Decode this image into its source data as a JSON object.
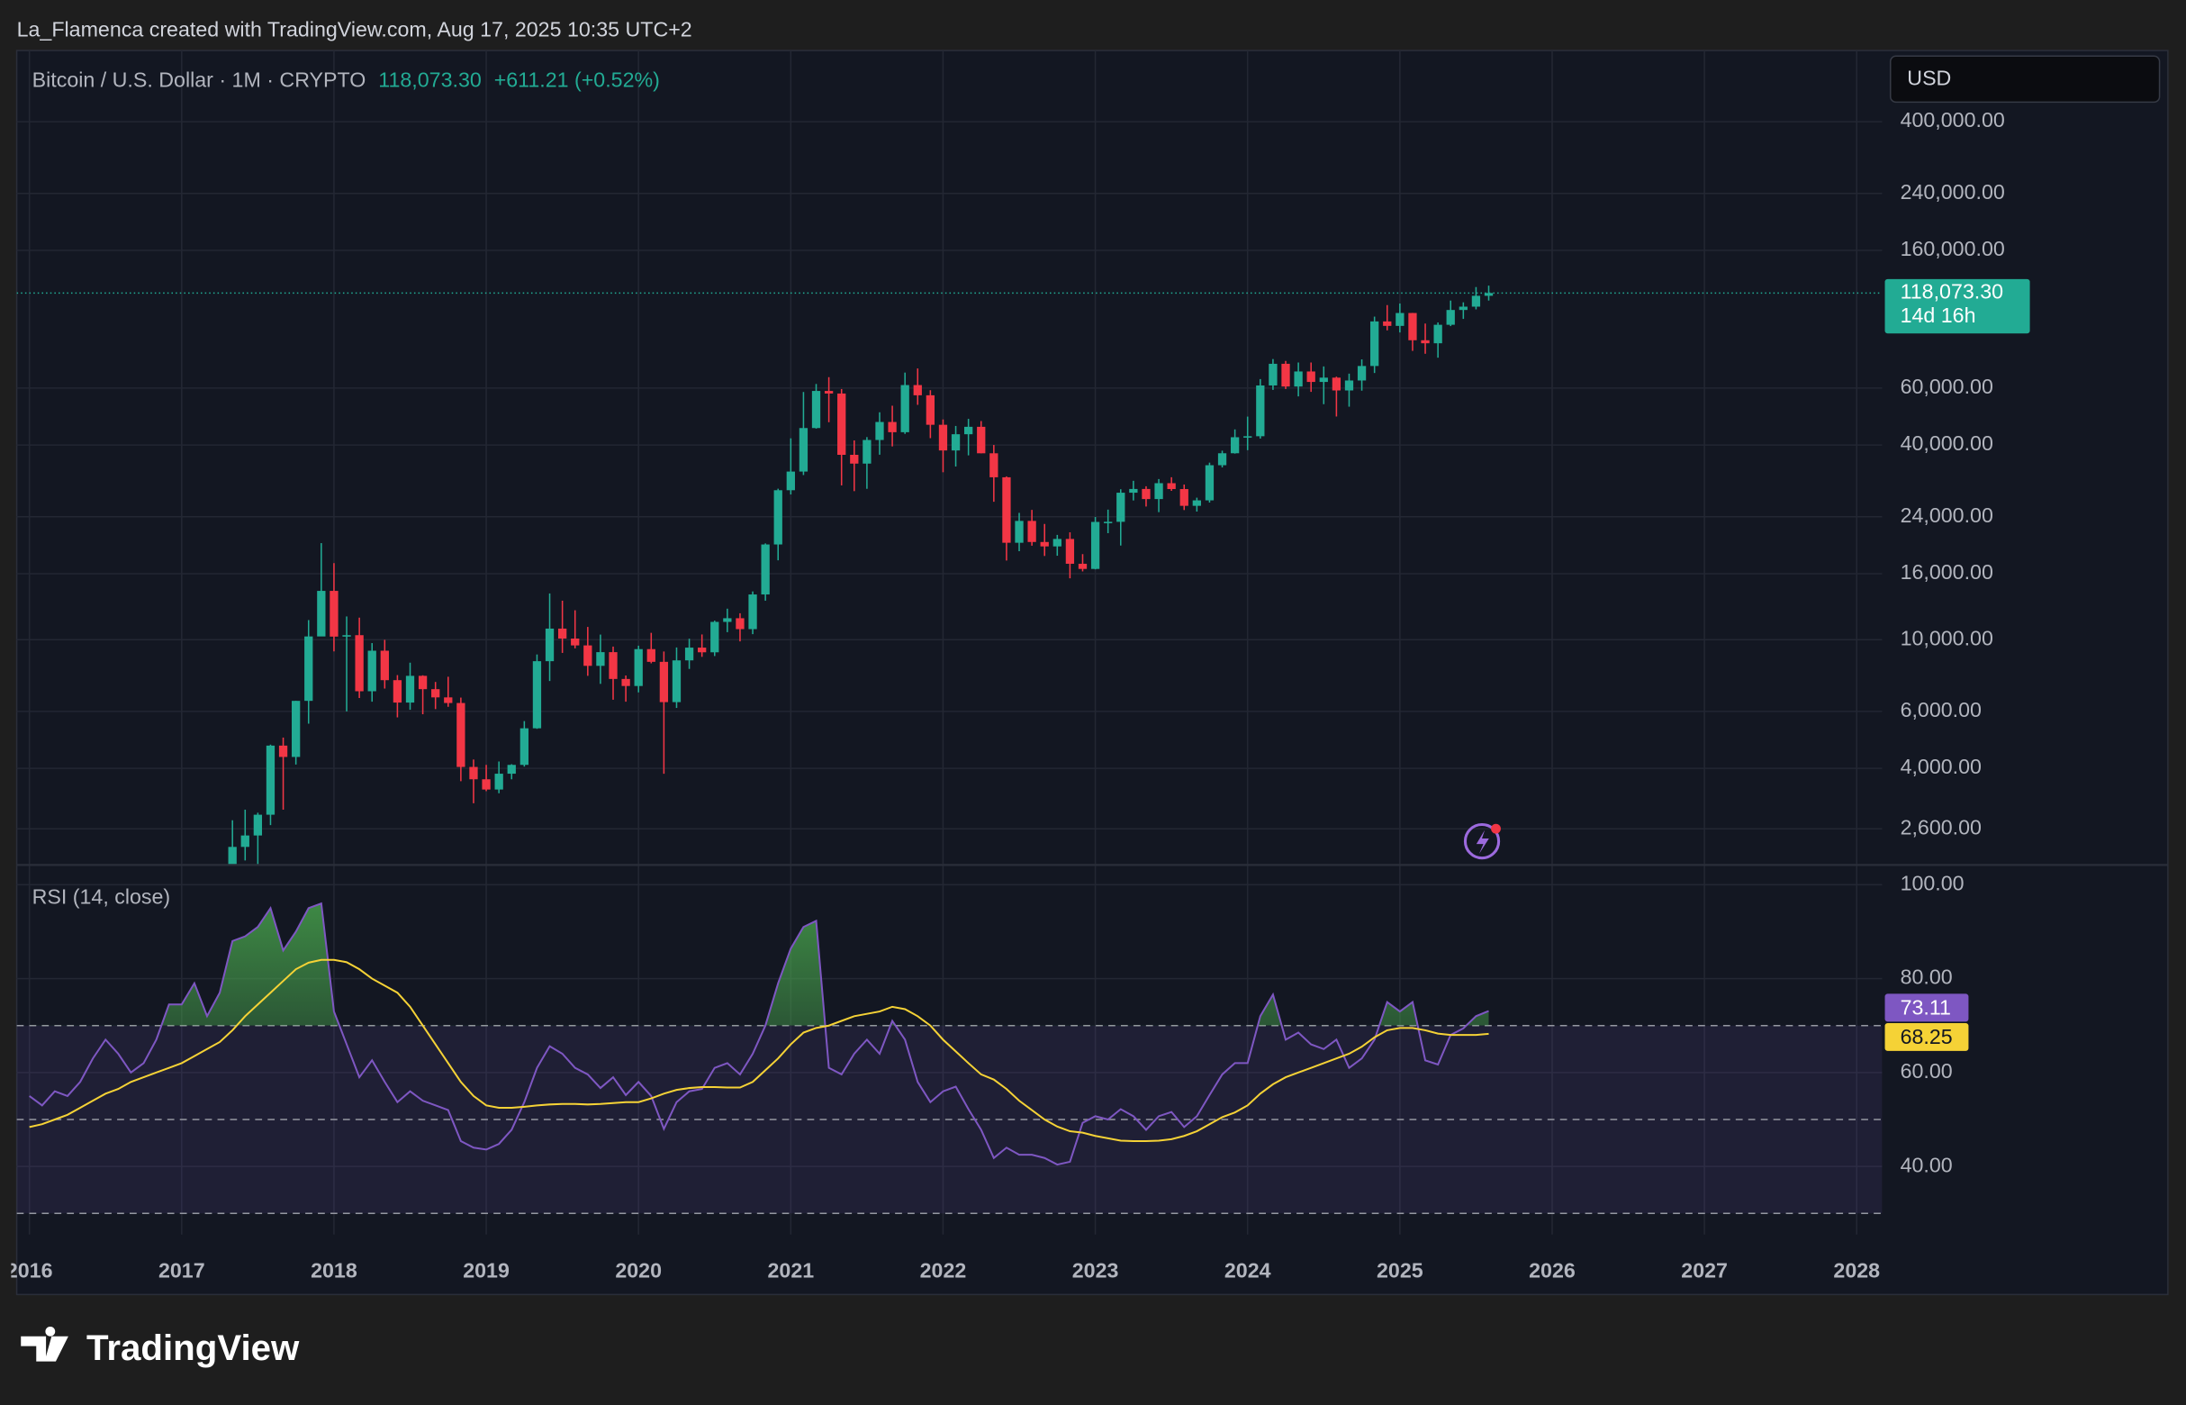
{
  "header": {
    "attribution": "La_Flamenca created with TradingView.com, Aug 17, 2025 10:35 UTC+2",
    "currency": "USD",
    "last_price_label": "118,073.30",
    "change": "+611.21 (+0.52%)",
    "countdown": "14d 16h"
  },
  "footer": {
    "brand": "TradingView"
  },
  "chart_data": [
    {
      "type": "candlestick",
      "title": "Bitcoin / U.S. Dollar · 1M · CRYPTO",
      "log_scale": true,
      "grid": true,
      "up_color": "#22ab94",
      "down_color": "#f23645",
      "xlim": [
        "2015-12",
        "2028-03"
      ],
      "ylim": [
        2010,
        664000
      ],
      "yticks": [
        {
          "value": 400000,
          "label": "400,000.00"
        },
        {
          "value": 240000,
          "label": "240,000.00"
        },
        {
          "value": 160000,
          "label": "160,000.00"
        },
        {
          "value": 60000,
          "label": "60,000.00"
        },
        {
          "value": 40000,
          "label": "40,000.00"
        },
        {
          "value": 24000,
          "label": "24,000.00"
        },
        {
          "value": 16000,
          "label": "16,000.00"
        },
        {
          "value": 10000,
          "label": "10,000.00"
        },
        {
          "value": 6000,
          "label": "6,000.00"
        },
        {
          "value": 4000,
          "label": "4,000.00"
        },
        {
          "value": 2600,
          "label": "2,600.00"
        }
      ],
      "x": [
        "2017-05",
        "2017-06",
        "2017-07",
        "2017-08",
        "2017-09",
        "2017-10",
        "2017-11",
        "2017-12",
        "2018-01",
        "2018-02",
        "2018-03",
        "2018-04",
        "2018-05",
        "2018-06",
        "2018-07",
        "2018-08",
        "2018-09",
        "2018-10",
        "2018-11",
        "2018-12",
        "2019-01",
        "2019-02",
        "2019-03",
        "2019-04",
        "2019-05",
        "2019-06",
        "2019-07",
        "2019-08",
        "2019-09",
        "2019-10",
        "2019-11",
        "2019-12",
        "2020-01",
        "2020-02",
        "2020-03",
        "2020-04",
        "2020-05",
        "2020-06",
        "2020-07",
        "2020-08",
        "2020-09",
        "2020-10",
        "2020-11",
        "2020-12",
        "2021-01",
        "2021-02",
        "2021-03",
        "2021-04",
        "2021-05",
        "2021-06",
        "2021-07",
        "2021-08",
        "2021-09",
        "2021-10",
        "2021-11",
        "2021-12",
        "2022-01",
        "2022-02",
        "2022-03",
        "2022-04",
        "2022-05",
        "2022-06",
        "2022-07",
        "2022-08",
        "2022-09",
        "2022-10",
        "2022-11",
        "2022-12",
        "2023-01",
        "2023-02",
        "2023-03",
        "2023-04",
        "2023-05",
        "2023-06",
        "2023-07",
        "2023-08",
        "2023-09",
        "2023-10",
        "2023-11",
        "2023-12",
        "2024-01",
        "2024-02",
        "2024-03",
        "2024-04",
        "2024-05",
        "2024-06",
        "2024-07",
        "2024-08",
        "2024-09",
        "2024-10",
        "2024-11",
        "2024-12",
        "2025-01",
        "2025-02",
        "2025-03",
        "2025-04",
        "2025-05",
        "2025-06",
        "2025-07",
        "2025-08"
      ],
      "open": [
        1348,
        2286,
        2480,
        2875,
        4703,
        4338,
        6468,
        10233,
        14156,
        10221,
        10326,
        6926,
        9245,
        7495,
        6390,
        7730,
        7030,
        6630,
        6370,
        4040,
        3700,
        3440,
        3850,
        4100,
        5320,
        8580,
        10820,
        10080,
        9600,
        8300,
        9150,
        7560,
        7190,
        9350,
        8540,
        6410,
        8630,
        9450,
        9140,
        11350,
        11650,
        10780,
        13800,
        19700,
        28990,
        33110,
        45140,
        58790,
        57720,
        37300,
        35040,
        41460,
        47130,
        43820,
        61300,
        57000,
        46200,
        38480,
        43190,
        45540,
        37710,
        31790,
        19940,
        23300,
        20050,
        19430,
        20490,
        17170,
        16550,
        23130,
        23150,
        28480,
        29250,
        27220,
        30480,
        29230,
        25940,
        26970,
        34640,
        37720,
        42280,
        42580,
        61130,
        71330,
        60670,
        67530,
        62680,
        64630,
        59000,
        63330,
        70220,
        96450,
        93430,
        102410,
        84350,
        82550,
        94170,
        104640,
        107140,
        115760
      ],
      "high": [
        2763,
        2980,
        2916,
        4736,
        4980,
        6470,
        11500,
        19890,
        17250,
        11800,
        11700,
        9760,
        9990,
        7770,
        8490,
        7760,
        7400,
        7680,
        6620,
        4260,
        4100,
        4200,
        4120,
        5600,
        9000,
        13900,
        13200,
        12330,
        10950,
        10370,
        9520,
        7750,
        9580,
        10500,
        9190,
        9460,
        10070,
        10380,
        11450,
        12470,
        12070,
        14100,
        19850,
        29300,
        41950,
        58350,
        61780,
        64850,
        59590,
        41330,
        42320,
        50500,
        52920,
        67000,
        69000,
        59100,
        47990,
        45820,
        48190,
        47440,
        40020,
        31990,
        24670,
        25200,
        22800,
        21090,
        21480,
        18390,
        23960,
        25250,
        29190,
        31000,
        29820,
        31390,
        31800,
        30190,
        27490,
        35280,
        38420,
        44700,
        48970,
        63970,
        73780,
        72800,
        71980,
        71990,
        70000,
        65100,
        66500,
        73600,
        99800,
        108350,
        109600,
        102500,
        95000,
        95750,
        111900,
        110500,
        123200,
        124450
      ],
      "low": [
        1348,
        2076,
        1830,
        2670,
        2980,
        4110,
        5500,
        10800,
        9200,
        6000,
        6600,
        6430,
        7060,
        5750,
        6070,
        5880,
        6100,
        6200,
        3650,
        3120,
        3400,
        3350,
        3700,
        4050,
        5300,
        7450,
        9100,
        9400,
        7730,
        7300,
        6520,
        6430,
        6870,
        8450,
        3850,
        6150,
        8120,
        8850,
        8900,
        10550,
        9880,
        10400,
        13200,
        17600,
        28130,
        32300,
        44950,
        47050,
        30000,
        28800,
        29280,
        37330,
        39600,
        43300,
        53250,
        42000,
        32950,
        34320,
        37160,
        37700,
        26700,
        17570,
        18780,
        19530,
        18150,
        18180,
        15480,
        16260,
        16500,
        21350,
        19550,
        26950,
        25810,
        24800,
        28860,
        25170,
        24900,
        26550,
        34100,
        37620,
        38550,
        41880,
        59230,
        59600,
        56550,
        58400,
        53500,
        49000,
        52550,
        58900,
        66800,
        90500,
        89160,
        78200,
        76600,
        74500,
        93300,
        98200,
        105100,
        111900
      ],
      "close": [
        2286,
        2480,
        2875,
        4703,
        4338,
        6468,
        10233,
        14156,
        10221,
        10326,
        6926,
        9245,
        7495,
        6390,
        7730,
        7030,
        6630,
        6370,
        4040,
        3700,
        3440,
        3850,
        4100,
        5320,
        8580,
        10820,
        10080,
        9600,
        8300,
        9150,
        7560,
        7190,
        9350,
        8540,
        6410,
        8630,
        9450,
        9140,
        11350,
        11650,
        10780,
        13800,
        19700,
        28990,
        33110,
        45140,
        58790,
        57720,
        37300,
        35040,
        41460,
        47130,
        43820,
        61300,
        57000,
        46200,
        38480,
        43190,
        45540,
        37710,
        31790,
        19940,
        23300,
        20050,
        19430,
        20490,
        17170,
        16550,
        23130,
        23150,
        28480,
        29250,
        27220,
        30480,
        29230,
        25940,
        26970,
        34640,
        37720,
        42280,
        42580,
        61130,
        71330,
        60670,
        67530,
        62680,
        64630,
        59000,
        63330,
        70220,
        96450,
        93430,
        102410,
        84350,
        82550,
        94170,
        104640,
        107140,
        115760,
        118073.3
      ]
    },
    {
      "type": "line",
      "title": "RSI (14, close)",
      "grid": true,
      "xlim": [
        "2015-12",
        "2028-03"
      ],
      "ylim": [
        25.5,
        104.2
      ],
      "yticks": [
        {
          "value": 100,
          "label": "100.00"
        },
        {
          "value": 80,
          "label": "80.00"
        },
        {
          "value": 60,
          "label": "60.00"
        },
        {
          "value": 40,
          "label": "40.00"
        }
      ],
      "bands": [
        30,
        50,
        70
      ],
      "band_color": "#7e57c2",
      "overbought_color": "#4caf50",
      "xticks": [
        "2016",
        "2017",
        "2018",
        "2019",
        "2020",
        "2021",
        "2022",
        "2023",
        "2024",
        "2025",
        "2026",
        "2027",
        "2028"
      ],
      "x": [
        "2016-01",
        "2016-02",
        "2016-03",
        "2016-04",
        "2016-05",
        "2016-06",
        "2016-07",
        "2016-08",
        "2016-09",
        "2016-10",
        "2016-11",
        "2016-12",
        "2017-01",
        "2017-02",
        "2017-03",
        "2017-04",
        "2017-05",
        "2017-06",
        "2017-07",
        "2017-08",
        "2017-09",
        "2017-10",
        "2017-11",
        "2017-12",
        "2018-01",
        "2018-02",
        "2018-03",
        "2018-04",
        "2018-05",
        "2018-06",
        "2018-07",
        "2018-08",
        "2018-09",
        "2018-10",
        "2018-11",
        "2018-12",
        "2019-01",
        "2019-02",
        "2019-03",
        "2019-04",
        "2019-05",
        "2019-06",
        "2019-07",
        "2019-08",
        "2019-09",
        "2019-10",
        "2019-11",
        "2019-12",
        "2020-01",
        "2020-02",
        "2020-03",
        "2020-04",
        "2020-05",
        "2020-06",
        "2020-07",
        "2020-08",
        "2020-09",
        "2020-10",
        "2020-11",
        "2020-12",
        "2021-01",
        "2021-02",
        "2021-03",
        "2021-04",
        "2021-05",
        "2021-06",
        "2021-07",
        "2021-08",
        "2021-09",
        "2021-10",
        "2021-11",
        "2021-12",
        "2022-01",
        "2022-02",
        "2022-03",
        "2022-04",
        "2022-05",
        "2022-06",
        "2022-07",
        "2022-08",
        "2022-09",
        "2022-10",
        "2022-11",
        "2022-12",
        "2023-01",
        "2023-02",
        "2023-03",
        "2023-04",
        "2023-05",
        "2023-06",
        "2023-07",
        "2023-08",
        "2023-09",
        "2023-10",
        "2023-11",
        "2023-12",
        "2024-01",
        "2024-02",
        "2024-03",
        "2024-04",
        "2024-05",
        "2024-06",
        "2024-07",
        "2024-08",
        "2024-09",
        "2024-10",
        "2024-11",
        "2024-12",
        "2025-01",
        "2025-02",
        "2025-03",
        "2025-04",
        "2025-05",
        "2025-06",
        "2025-07",
        "2025-08"
      ],
      "series": [
        {
          "color": "#7e57c2",
          "values": [
            55,
            53,
            56,
            55,
            58,
            63,
            67,
            64,
            60,
            62,
            67,
            74.5,
            74.5,
            79,
            72,
            77,
            88,
            89,
            91,
            95,
            86,
            90,
            95,
            96,
            73,
            66,
            59,
            62.6,
            58,
            53.7,
            56,
            54,
            53,
            52,
            45.4,
            44,
            43.6,
            44.8,
            47.8,
            53.7,
            61,
            65.6,
            64,
            61,
            59.6,
            56.7,
            59,
            55.2,
            58,
            55,
            48,
            53.7,
            56,
            56.5,
            61,
            62,
            59.6,
            64,
            70,
            79,
            86.4,
            91,
            92.3,
            61,
            59.6,
            64,
            67,
            64,
            71,
            67,
            58,
            53.7,
            56,
            57,
            52.2,
            47.8,
            41.8,
            44,
            42.5,
            42.5,
            41.8,
            40.4,
            41,
            49.3,
            50.7,
            50,
            52.2,
            50.7,
            47.8,
            50.7,
            51.6,
            48.4,
            50.7,
            55.2,
            59.6,
            62,
            62,
            72,
            76.6,
            67,
            68.5,
            66,
            65,
            67,
            61,
            63,
            67,
            75,
            73,
            75,
            62.6,
            61.7,
            68,
            69.4,
            72,
            73.11
          ]
        },
        {
          "color": "#f5d236",
          "values": [
            48.4,
            49,
            50,
            51,
            52.5,
            54,
            55.5,
            56.5,
            58,
            59,
            60,
            61,
            62,
            63.5,
            65,
            66.5,
            69,
            72,
            74.5,
            77,
            79.5,
            82,
            83.4,
            84,
            84,
            83.5,
            82,
            80,
            78.5,
            77,
            74,
            70,
            66,
            62,
            58,
            55,
            53,
            52.5,
            52.5,
            52.7,
            53,
            53.2,
            53.3,
            53.3,
            53.2,
            53.3,
            53.5,
            53.7,
            53.7,
            54.5,
            55.5,
            56.3,
            56.7,
            56.9,
            56.9,
            56.8,
            56.8,
            58,
            60.5,
            63,
            66,
            68.5,
            69.5,
            70,
            71,
            72,
            72.5,
            73,
            74,
            73.5,
            72,
            70,
            67,
            64.5,
            62,
            59.6,
            58.5,
            56.5,
            54,
            52,
            50,
            48.5,
            47.5,
            47.2,
            46.5,
            46,
            45.5,
            45.4,
            45.4,
            45.5,
            45.8,
            46.5,
            47.5,
            49,
            50.5,
            51.5,
            53,
            55.5,
            57.5,
            59,
            60,
            61,
            62,
            63,
            64,
            65.5,
            67.5,
            69,
            69.5,
            69.5,
            69,
            68.3,
            68,
            68,
            68,
            68.25
          ]
        }
      ]
    }
  ]
}
